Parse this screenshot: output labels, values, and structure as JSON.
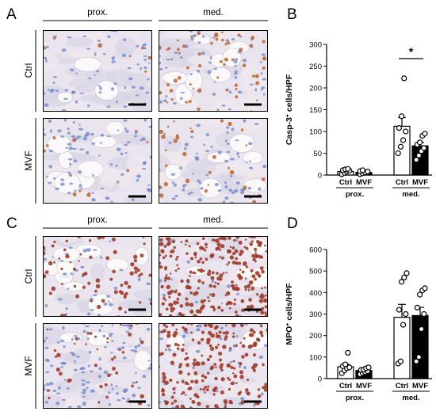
{
  "panel_letters": {
    "a": "A",
    "b": "B",
    "c": "C",
    "d": "D"
  },
  "micrograph_panels": {
    "col_labels": [
      "prox.",
      "med."
    ],
    "row_labels": [
      "Ctrl",
      "MVF"
    ]
  },
  "colors": {
    "ctrl_bar": "#ffffff",
    "mvf_bar": "#000000",
    "tissue_bg": "#e9e4ee",
    "casp_stain": "#c06a3a",
    "mpo_stain": "#a03a28",
    "nuclei": "#6a86c8",
    "adipocyte": "#fbf8fa"
  },
  "chart_data": [
    {
      "panel": "B",
      "type": "bar",
      "title": "",
      "ylabel": {
        "pre": "Casp-3",
        "sup": "+",
        "post": " cells/HPF"
      },
      "ylim": [
        0,
        300
      ],
      "yticks": [
        0,
        50,
        100,
        150,
        200,
        250,
        300
      ],
      "categories": [
        "Ctrl",
        "MVF",
        "Ctrl",
        "MVF"
      ],
      "groups": [
        {
          "label": "prox.",
          "span": [
            0,
            1
          ]
        },
        {
          "label": "med.",
          "span": [
            2,
            3
          ]
        }
      ],
      "series": [
        {
          "values": [
            8,
            6,
            112,
            67
          ],
          "errors": [
            2.5,
            2,
            20,
            8
          ],
          "points": [
            [
              2,
              5,
              8,
              10,
              11,
              13,
              14
            ],
            [
              2,
              4,
              6,
              8,
              9,
              11
            ],
            [
              50,
              65,
              80,
              100,
              108,
              135,
              222
            ],
            [
              35,
              45,
              55,
              62,
              70,
              75,
              90,
              95
            ]
          ]
        }
      ],
      "significance": {
        "label": "*",
        "between": [
          2,
          3
        ]
      },
      "grid": false
    },
    {
      "panel": "D",
      "type": "bar",
      "title": "",
      "ylabel": {
        "pre": "MPO",
        "sup": "+",
        "post": " cells/HPF"
      },
      "ylim": [
        0,
        600
      ],
      "yticks": [
        0,
        100,
        200,
        300,
        400,
        500,
        600
      ],
      "categories": [
        "Ctrl",
        "MVF",
        "Ctrl",
        "MVF"
      ],
      "groups": [
        {
          "label": "prox.",
          "span": [
            0,
            1
          ]
        },
        {
          "label": "med.",
          "span": [
            2,
            3
          ]
        }
      ],
      "series": [
        {
          "values": [
            55,
            38,
            285,
            293
          ],
          "errors": [
            12,
            5,
            60,
            38
          ],
          "points": [
            [
              25,
              38,
              48,
              52,
              58,
              66,
              120
            ],
            [
              20,
              26,
              30,
              35,
              40,
              42,
              48,
              52
            ],
            [
              70,
              80,
              250,
              300,
              320,
              450,
              470,
              490
            ],
            [
              80,
              100,
              230,
              300,
              330,
              390,
              410,
              420
            ]
          ]
        }
      ],
      "grid": false
    }
  ]
}
